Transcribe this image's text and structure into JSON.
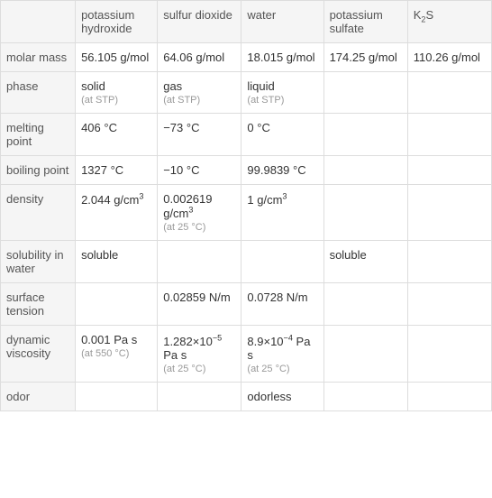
{
  "columns": [
    {
      "name": "potassium hydroxide"
    },
    {
      "name": "sulfur dioxide"
    },
    {
      "name": "water"
    },
    {
      "name": "potassium sulfate"
    },
    {
      "name_html": "K<sub>2</sub>S"
    }
  ],
  "rows": [
    {
      "label": "molar mass",
      "cells": [
        {
          "value": "56.105 g/mol"
        },
        {
          "value": "64.06 g/mol"
        },
        {
          "value": "18.015 g/mol"
        },
        {
          "value": "174.25 g/mol"
        },
        {
          "value": "110.26 g/mol"
        }
      ]
    },
    {
      "label": "phase",
      "cells": [
        {
          "value": "solid",
          "note": "(at STP)"
        },
        {
          "value": "gas",
          "note": "(at STP)"
        },
        {
          "value": "liquid",
          "note": "(at STP)"
        },
        {
          "value": ""
        },
        {
          "value": ""
        }
      ]
    },
    {
      "label": "melting point",
      "cells": [
        {
          "value": "406 °C"
        },
        {
          "value": "−73 °C"
        },
        {
          "value": "0 °C"
        },
        {
          "value": ""
        },
        {
          "value": ""
        }
      ]
    },
    {
      "label": "boiling point",
      "cells": [
        {
          "value": "1327 °C"
        },
        {
          "value": "−10 °C"
        },
        {
          "value": "99.9839 °C"
        },
        {
          "value": ""
        },
        {
          "value": ""
        }
      ]
    },
    {
      "label": "density",
      "cells": [
        {
          "value_html": "2.044 g/cm<sup>3</sup>"
        },
        {
          "value_html": "0.002619 g/cm<sup>3</sup>",
          "note": "(at 25 °C)"
        },
        {
          "value_html": "1 g/cm<sup>3</sup>"
        },
        {
          "value": ""
        },
        {
          "value": ""
        }
      ]
    },
    {
      "label": "solubility in water",
      "cells": [
        {
          "value": "soluble"
        },
        {
          "value": ""
        },
        {
          "value": ""
        },
        {
          "value": "soluble"
        },
        {
          "value": ""
        }
      ]
    },
    {
      "label": "surface tension",
      "cells": [
        {
          "value": ""
        },
        {
          "value": "0.02859 N/m"
        },
        {
          "value": "0.0728 N/m"
        },
        {
          "value": ""
        },
        {
          "value": ""
        }
      ]
    },
    {
      "label": "dynamic viscosity",
      "cells": [
        {
          "value": "0.001 Pa s",
          "note": "(at 550 °C)"
        },
        {
          "value_html": "1.282×10<sup>−5</sup> Pa s",
          "note": "(at 25 °C)"
        },
        {
          "value_html": "8.9×10<sup>−4</sup> Pa s",
          "note": "(at 25 °C)"
        },
        {
          "value": ""
        },
        {
          "value": ""
        }
      ]
    },
    {
      "label": "odor",
      "cells": [
        {
          "value": ""
        },
        {
          "value": ""
        },
        {
          "value": "odorless"
        },
        {
          "value": ""
        },
        {
          "value": ""
        }
      ]
    }
  ]
}
